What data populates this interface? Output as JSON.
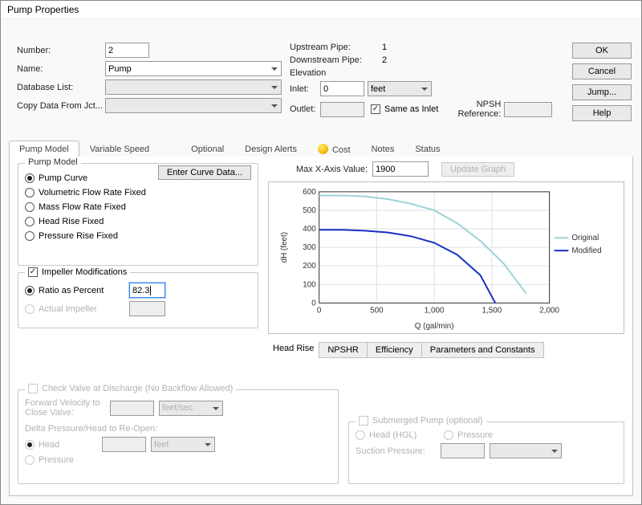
{
  "window": {
    "title": "Pump Properties"
  },
  "buttons": {
    "ok": "OK",
    "cancel": "Cancel",
    "jump": "Jump...",
    "help": "Help"
  },
  "top": {
    "number_label": "Number:",
    "number_value": "2",
    "name_label": "Name:",
    "name_value": "Pump",
    "db_label": "Database List:",
    "db_value": "",
    "copy_label": "Copy Data From Jct...",
    "up_label": "Upstream Pipe:",
    "up_value": "1",
    "down_label": "Downstream Pipe:",
    "down_value": "2",
    "elev_label": "Elevation",
    "inlet_label": "Inlet:",
    "inlet_value": "0",
    "inlet_unit": "feet",
    "outlet_label": "Outlet:",
    "outlet_value": "",
    "same_label": "Same as Inlet",
    "npsh_label": "NPSH Reference:",
    "npsh_value": ""
  },
  "tabs": {
    "pump_model": "Pump Model",
    "var_speed": "Variable Speed",
    "optional": "Optional",
    "design_alerts": "Design Alerts",
    "cost": "Cost",
    "notes": "Notes",
    "status": "Status"
  },
  "pump_model_group": {
    "legend": "Pump Model",
    "enter_curve": "Enter Curve Data...",
    "opt_curve": "Pump Curve",
    "opt_vflow": "Volumetric Flow Rate Fixed",
    "opt_mflow": "Mass Flow Rate Fixed",
    "opt_head": "Head Rise Fixed",
    "opt_press": "Pressure Rise Fixed"
  },
  "impeller": {
    "check_label": "Impeller Modifications",
    "ratio_label": "Ratio as Percent",
    "ratio_value": "82.3",
    "actual_label": "Actual Impeller"
  },
  "graph": {
    "maxx_label": "Max X-Axis Value:",
    "maxx_value": "1900",
    "update_btn": "Update Graph",
    "ylabel": "dH (feet)",
    "xlabel": "Q (gal/min)",
    "xlim": [
      0,
      2000
    ],
    "ylim": [
      0,
      600
    ],
    "xticks": [
      0,
      500,
      1000,
      1500,
      2000
    ],
    "xticklabels": [
      "0",
      "500",
      "1,000",
      "1,500",
      "2,000"
    ],
    "yticks": [
      0,
      100,
      200,
      300,
      400,
      500,
      600
    ],
    "legend_original": "Original",
    "legend_modified": "Modified",
    "original_color": "#9ed2d8",
    "modified_color": "#1a2fc4",
    "grid_color": "#e0e0e0",
    "axis_color": "#333333",
    "original": [
      [
        0,
        580
      ],
      [
        200,
        580
      ],
      [
        400,
        575
      ],
      [
        600,
        560
      ],
      [
        800,
        535
      ],
      [
        1000,
        500
      ],
      [
        1200,
        430
      ],
      [
        1400,
        335
      ],
      [
        1600,
        215
      ],
      [
        1800,
        50
      ]
    ],
    "modified": [
      [
        0,
        395
      ],
      [
        200,
        395
      ],
      [
        400,
        390
      ],
      [
        600,
        380
      ],
      [
        800,
        360
      ],
      [
        1000,
        325
      ],
      [
        1200,
        260
      ],
      [
        1400,
        150
      ],
      [
        1530,
        0
      ]
    ]
  },
  "subtabs": {
    "headrise": "Head Rise",
    "npshr": "NPSHR",
    "eff": "Efficiency",
    "params": "Parameters and Constants"
  },
  "checkvalve": {
    "legend": "Check Valve at Discharge (No Backflow Allowed)",
    "fwd_label": "Forward Velocity to Close Valve:",
    "fwd_unit": "feet/sec",
    "delta_label": "Delta Pressure/Head to Re-Open:",
    "head_opt": "Head",
    "press_opt": "Pressure",
    "head_unit": "feet"
  },
  "submerged": {
    "label": "Submerged Pump (optional)",
    "head_opt": "Head (HGL)",
    "press_opt": "Pressure",
    "suction_label": "Suction Pressure:"
  }
}
